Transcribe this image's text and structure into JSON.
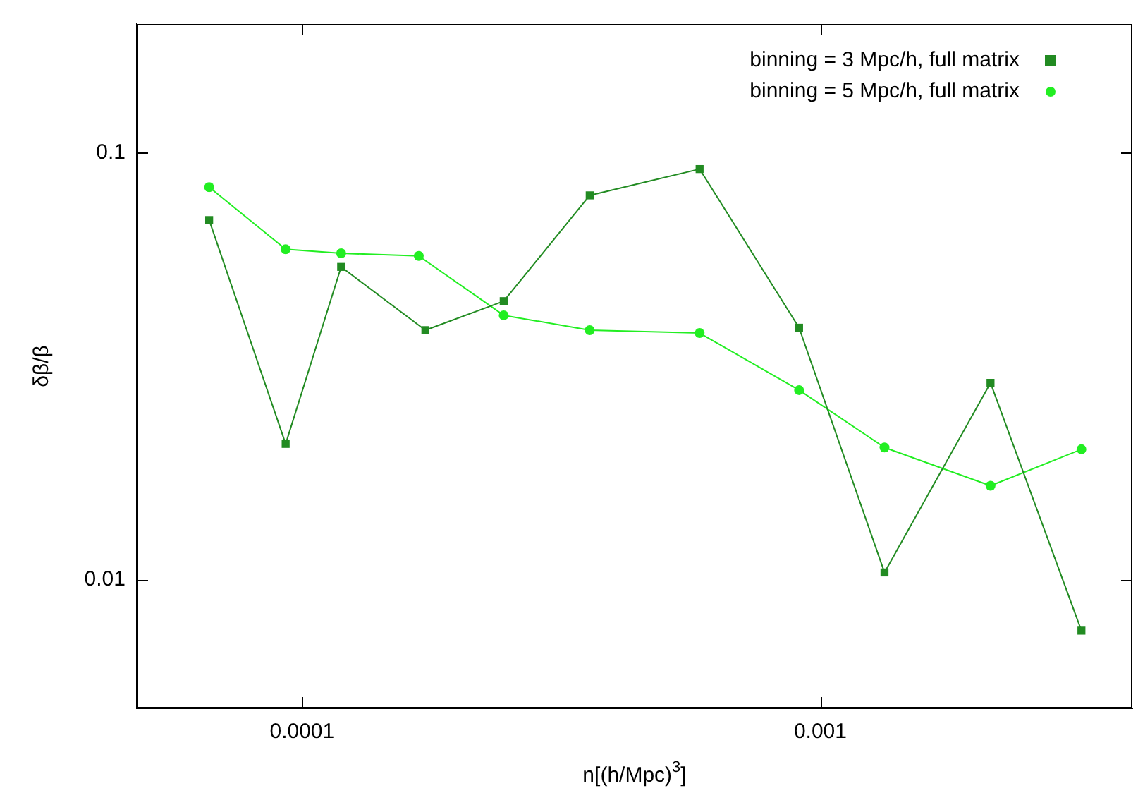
{
  "chart_data": {
    "type": "line",
    "xlabel": "n[(h/Mpc)$^{3}$]",
    "ylabel": "δβ/β",
    "log": "xy",
    "grid": false,
    "legend": "top right",
    "xlim": [
      4.8e-05,
      0.004
    ],
    "ylim": [
      0.005,
      0.2
    ],
    "xticks": [
      0.0001,
      0.001
    ],
    "yticks": [
      0.01,
      0.1
    ],
    "series": [
      {
        "name": "binning = 3 Mpc/h, full matrix",
        "color": "#228b22",
        "marker": "square",
        "x": [
          6.62e-05,
          9.3e-05,
          0.000119,
          0.000173,
          0.000245,
          0.000359,
          0.000585,
          0.00091,
          0.00133,
          0.00213,
          0.00319
        ],
        "values": [
          0.0695,
          0.0208,
          0.054,
          0.0384,
          0.0449,
          0.0794,
          0.0915,
          0.0389,
          0.0104,
          0.0289,
          0.0076
        ]
      },
      {
        "name": "binning = 5 Mpc/h, full matrix",
        "color": "#22ee22",
        "marker": "circle",
        "x": [
          6.62e-05,
          9.3e-05,
          0.000119,
          0.000168,
          0.000245,
          0.000359,
          0.000585,
          0.00091,
          0.00133,
          0.00213,
          0.00319
        ],
        "values": [
          0.083,
          0.0594,
          0.0581,
          0.0573,
          0.0416,
          0.0384,
          0.0378,
          0.0278,
          0.0204,
          0.0166,
          0.0202
        ]
      }
    ]
  }
}
